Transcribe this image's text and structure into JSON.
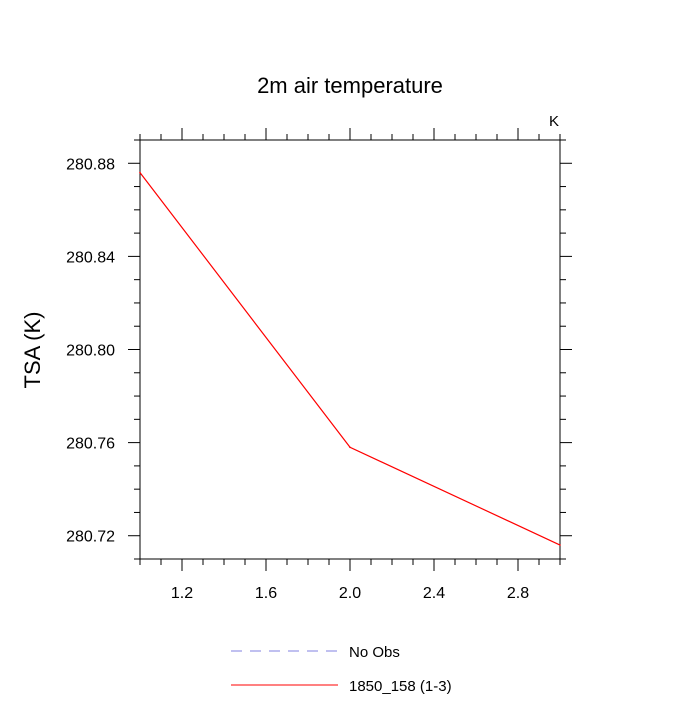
{
  "chart_data": {
    "type": "line",
    "title": "2m air temperature",
    "units_label": "K",
    "xlabel": "",
    "ylabel": "TSA  (K)",
    "xlim": [
      1.0,
      3.0
    ],
    "ylim": [
      280.71,
      280.89
    ],
    "x_ticks": [
      1.2,
      1.6,
      2.0,
      2.4,
      2.8
    ],
    "x_tick_labels": [
      "1.2",
      "1.6",
      "2.0",
      "2.4",
      "2.8"
    ],
    "y_ticks": [
      280.72,
      280.76,
      280.8,
      280.84,
      280.88
    ],
    "y_tick_labels": [
      "280.72",
      "280.76",
      "280.80",
      "280.84",
      "280.88"
    ],
    "grid": false,
    "legend_position": "bottom",
    "series": [
      {
        "name": "No Obs",
        "color": "#8080e0",
        "style": "dashed",
        "x": [],
        "y": []
      },
      {
        "name": "1850_158 (1-3)",
        "color": "#ff0000",
        "style": "solid",
        "x": [
          1.0,
          2.0,
          3.0
        ],
        "y": [
          280.876,
          280.758,
          280.716
        ]
      }
    ]
  }
}
